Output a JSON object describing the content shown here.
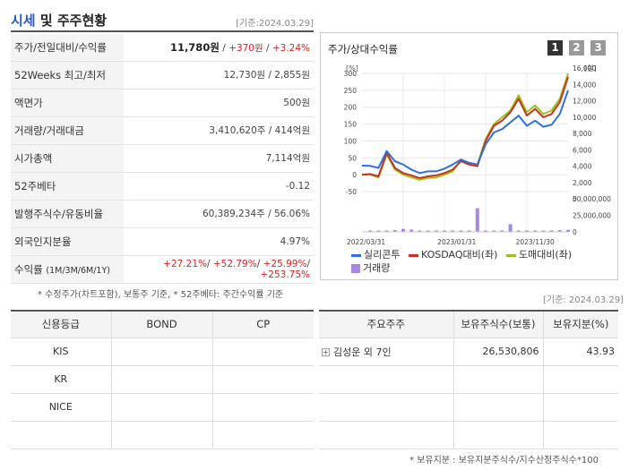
{
  "header": {
    "title_accent": "시세",
    "title_rest": " 및 주주현황",
    "base_date": "[기준:2024.03.29]"
  },
  "quote": {
    "rows": [
      {
        "label": "주가/전일대비/수익률",
        "price": "11,780원",
        "sep1": " / ",
        "change": "+370원",
        "sep2": " / ",
        "rate": "+3.24%"
      },
      {
        "label": "52Weeks 최고/최저",
        "value": "12,730원 / 2,855원"
      },
      {
        "label": "액면가",
        "value": "500원"
      },
      {
        "label": "거래량/거래대금",
        "value": "3,410,620주 / 414억원"
      },
      {
        "label": "시가총액",
        "value": "7,114억원"
      },
      {
        "label": "52주베타",
        "value": "-0.12"
      },
      {
        "label": "발행주식수/유동비율",
        "value": "60,389,234주 / 56.06%"
      },
      {
        "label": "외국인지분율",
        "value": "4.97%"
      },
      {
        "label": "수익률",
        "label_small": "(1M/3M/6M/1Y)",
        "values": [
          "+27.21%",
          "+52.79%",
          "+25.99%",
          "+253.75%"
        ]
      }
    ],
    "footnote": "* 수정주가(차트포함), 보통주 기준, * 52주베타: 주간수익률 기준"
  },
  "chart_panel": {
    "title": "주가/상대수익률",
    "tabs": [
      "1",
      "2",
      "3"
    ],
    "active_tab": "1"
  },
  "chart_data": {
    "type": "line",
    "left_axis_unit": "[%]",
    "right_axis_unit": "[원]",
    "left_ticks": [
      "300",
      "250",
      "200",
      "150",
      "100",
      "50",
      "0",
      "-50"
    ],
    "right_ticks": [
      "16,000",
      "14,000",
      "12,000",
      "10,000",
      "8,000",
      "6,000",
      "4,000",
      "2,000",
      "0"
    ],
    "volume_ticks": [
      "50,000,000",
      "25,000,000",
      "0"
    ],
    "x_tick_labels": [
      "2022/03/31",
      "2023/01/31",
      "2023/11/30"
    ],
    "ylim_left": [
      -50,
      300
    ],
    "ylim_right": [
      0,
      16000
    ],
    "volume_ylim": [
      0,
      50000000
    ],
    "series": [
      {
        "name": "실리콘투",
        "color": "#2f6fe0",
        "values": [
          27,
          26,
          20,
          70,
          40,
          30,
          15,
          5,
          10,
          10,
          18,
          30,
          45,
          35,
          30,
          90,
          125,
          135,
          155,
          175,
          145,
          160,
          142,
          148,
          180,
          250
        ]
      },
      {
        "name": "KOSDAQ대비(좌)",
        "color": "#c8321e",
        "values": [
          0,
          2,
          -5,
          65,
          20,
          5,
          -2,
          -10,
          -5,
          -2,
          5,
          15,
          40,
          30,
          25,
          100,
          145,
          160,
          185,
          225,
          175,
          195,
          170,
          180,
          215,
          290
        ]
      },
      {
        "name": "도매대비(좌)",
        "color": "#9ac21b",
        "values": [
          0,
          0,
          -8,
          60,
          15,
          0,
          -8,
          -15,
          -10,
          -8,
          0,
          10,
          45,
          35,
          30,
          105,
          150,
          170,
          190,
          235,
          185,
          205,
          180,
          190,
          225,
          300
        ]
      }
    ],
    "volume": {
      "name": "거래량",
      "color": "#a887e0",
      "values": [
        0,
        1000000,
        2000000,
        500000,
        3000000,
        5000000,
        4000000,
        1500000,
        1000000,
        500000,
        800000,
        1000000,
        600000,
        1200000,
        40000000,
        700000,
        900000,
        1500000,
        13000000,
        1000000,
        1100000,
        2000000,
        1500000,
        2500000,
        3000000,
        3500000
      ]
    },
    "grid": true,
    "legend_position": "bottom"
  },
  "holders_header": {
    "base_date": "[기준: 2024.03.29]"
  },
  "credit": {
    "headers": [
      "신용등급",
      "BOND",
      "CP"
    ],
    "rows": [
      {
        "agency": "KIS",
        "bond": "",
        "cp": ""
      },
      {
        "agency": "KR",
        "bond": "",
        "cp": ""
      },
      {
        "agency": "NICE",
        "bond": "",
        "cp": ""
      },
      {
        "agency": "",
        "bond": "",
        "cp": ""
      }
    ]
  },
  "holders": {
    "headers": [
      "주요주주",
      "보유주식수(보통)",
      "보유지분(%)"
    ],
    "rows": [
      {
        "name": "김성운 외 7인",
        "shares": "26,530,806",
        "pct": "43.93"
      },
      {
        "name": "",
        "shares": "",
        "pct": ""
      },
      {
        "name": "",
        "shares": "",
        "pct": ""
      },
      {
        "name": "",
        "shares": "",
        "pct": ""
      }
    ],
    "footnote": "* 보유지분 : 보유지분주식수/지수산정주식수*100"
  }
}
